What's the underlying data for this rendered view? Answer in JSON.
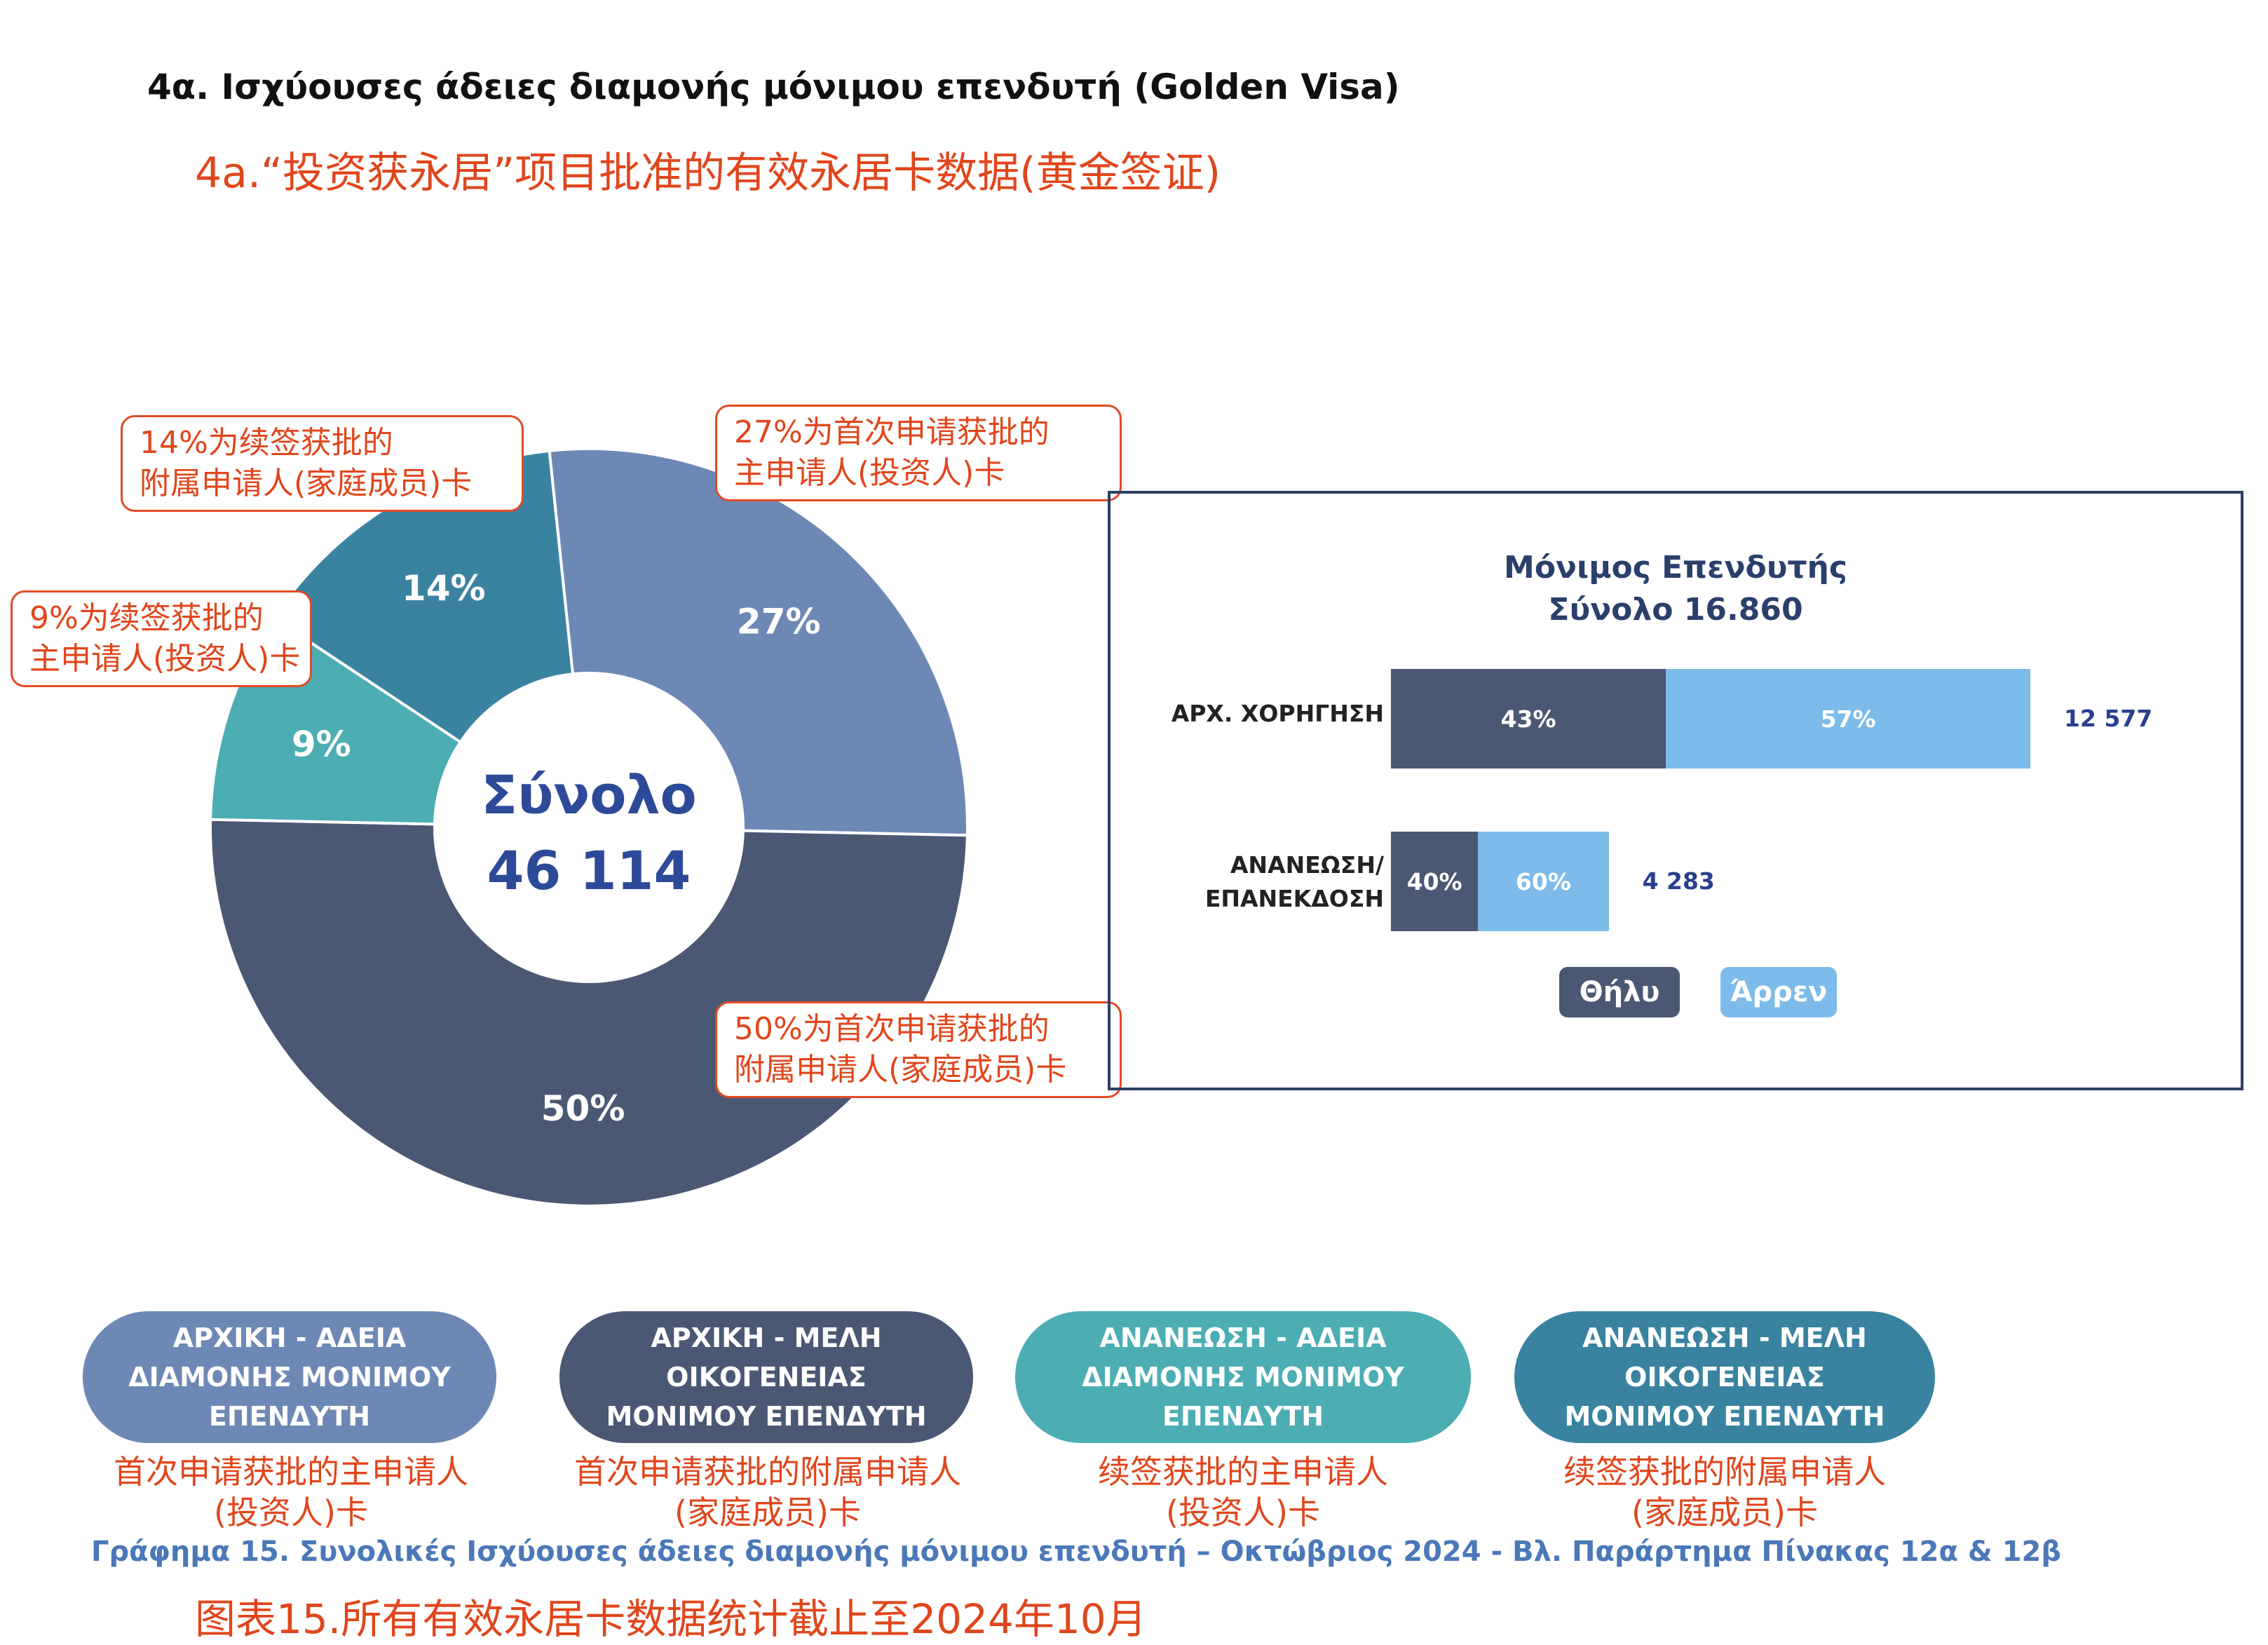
{
  "title_gr": "4α. Ισχύουσες άδειες διαμονής μόνιμου επενδυτή (Golden Visa)",
  "title_cn": "4a.“投资获永居”项目批准的有效永居卡数据(黄金签证)",
  "chart_data": [
    {
      "type": "pie",
      "center_label": "Σύνολο",
      "center_value": "46 114",
      "series": [
        {
          "name": "ΑΡΧΙΚΗ - ΑΔΕΙΑ ΔΙΑΜΟΝΗΣ ΜΟΝΙΜΟΥ ΕΠΕΝΔΥΤΗ",
          "value": 27,
          "label": "27%",
          "color": "#6e88b5"
        },
        {
          "name": "ΑΡΧΙΚΗ - ΜΕΛΗ ΟΙΚΟΓΕΝΕΙΑΣ ΜΟΝΙΜΟΥ ΕΠΕΝΔΥΤΗ",
          "value": 50,
          "label": "50%",
          "color": "#4b5873"
        },
        {
          "name": "ΑΝΑΝΕΩΣΗ - ΑΔΕΙΑ ΔΙΑΜΟΝΗΣ ΜΟΝΙΜΟΥ ΕΠΕΝΔΥΤΗ",
          "value": 9,
          "label": "9%",
          "color": "#4cadb3"
        },
        {
          "name": "ΑΝΑΝΕΩΣΗ - ΜΕΛΗ ΟΙΚΟΓΕΝΕΙΑΣ ΜΟΝΙΜΟΥ ΕΠΕΝΔΥΤΗ",
          "value": 14,
          "label": "14%",
          "color": "#3a83a0"
        }
      ]
    },
    {
      "type": "bar",
      "title": "Μόνιμος Επενδυτής",
      "subtitle": "Σύνολο 16.860",
      "categories": [
        "ΑΡΧ. ΧΟΡΗΓΗΣΗ",
        "ΑΝΑΝΕΩΣΗ/ ΕΠΑΝΕΚΔΟΣΗ"
      ],
      "category_lines": [
        [
          "ΑΡΧ. ΧΟΡΗΓΗΣΗ"
        ],
        [
          "ΑΝΑΝΕΩΣΗ/",
          "ΕΠΑΝΕΚΔΟΣΗ"
        ]
      ],
      "totals": [
        12577,
        4283
      ],
      "totals_labels": [
        "12 577",
        "4 283"
      ],
      "series": [
        {
          "name": "Θήλυ",
          "values": [
            43,
            40
          ],
          "labels": [
            "43%",
            "40%"
          ],
          "color": "#4b5873"
        },
        {
          "name": "Άρρεν",
          "values": [
            57,
            60
          ],
          "labels": [
            "57%",
            "60%"
          ],
          "color": "#7dbbea"
        }
      ]
    }
  ],
  "callouts": {
    "c14": [
      "14%为续签获批的",
      "附属申请人(家庭成员)卡"
    ],
    "c27": [
      "27%为首次申请获批的",
      "主申请人(投资人)卡"
    ],
    "c9": [
      "9%为续签获批的",
      "主申请人(投资人)卡"
    ],
    "c50": [
      "50%为首次申请获批的",
      "附属申请人(家庭成员)卡"
    ]
  },
  "legend": [
    {
      "lines": [
        "ΑΡΧΙΚΗ - ΑΔΕΙΑ",
        "ΔΙΑΜΟΝΗΣ ΜΟΝΙΜΟΥ",
        "ΕΠΕΝΔΥΤΗ"
      ],
      "cn": [
        "首次申请获批的主申请人",
        "(投资人)卡"
      ],
      "color": "#6e88b5"
    },
    {
      "lines": [
        "ΑΡΧΙΚΗ - ΜΕΛΗ",
        "ΟΙΚΟΓΕΝΕΙΑΣ",
        "ΜΟΝΙΜΟΥ ΕΠΕΝΔΥΤΗ"
      ],
      "cn": [
        "首次申请获批的附属申请人",
        "(家庭成员)卡"
      ],
      "color": "#4b5873"
    },
    {
      "lines": [
        "ΑΝΑΝΕΩΣΗ - ΑΔΕΙΑ",
        "ΔΙΑΜΟΝΗΣ ΜΟΝΙΜΟΥ",
        "ΕΠΕΝΔΥΤΗ"
      ],
      "cn": [
        "续签获批的主申请人",
        "(投资人)卡"
      ],
      "color": "#4cadb3"
    },
    {
      "lines": [
        "ΑΝΑΝΕΩΣΗ - ΜΕΛΗ",
        "ΟΙΚΟΓΕΝΕΙΑΣ",
        "ΜΟΝΙΜΟΥ ΕΠΕΝΔΥΤΗ"
      ],
      "cn": [
        "续签获批的附属申请人",
        "(家庭成员)卡"
      ],
      "color": "#3a83a0"
    }
  ],
  "caption_gr": "Γράφημα 15. Συνολικές Ισχύουσες άδειες διαμονής μόνιμου επενδυτή – Οκτώβριος 2024 - Βλ. Παράρτημα  Πίνακας 12α & 12β",
  "caption_cn": "图表15.所有有效永居卡数据统计截止至2024年10月"
}
